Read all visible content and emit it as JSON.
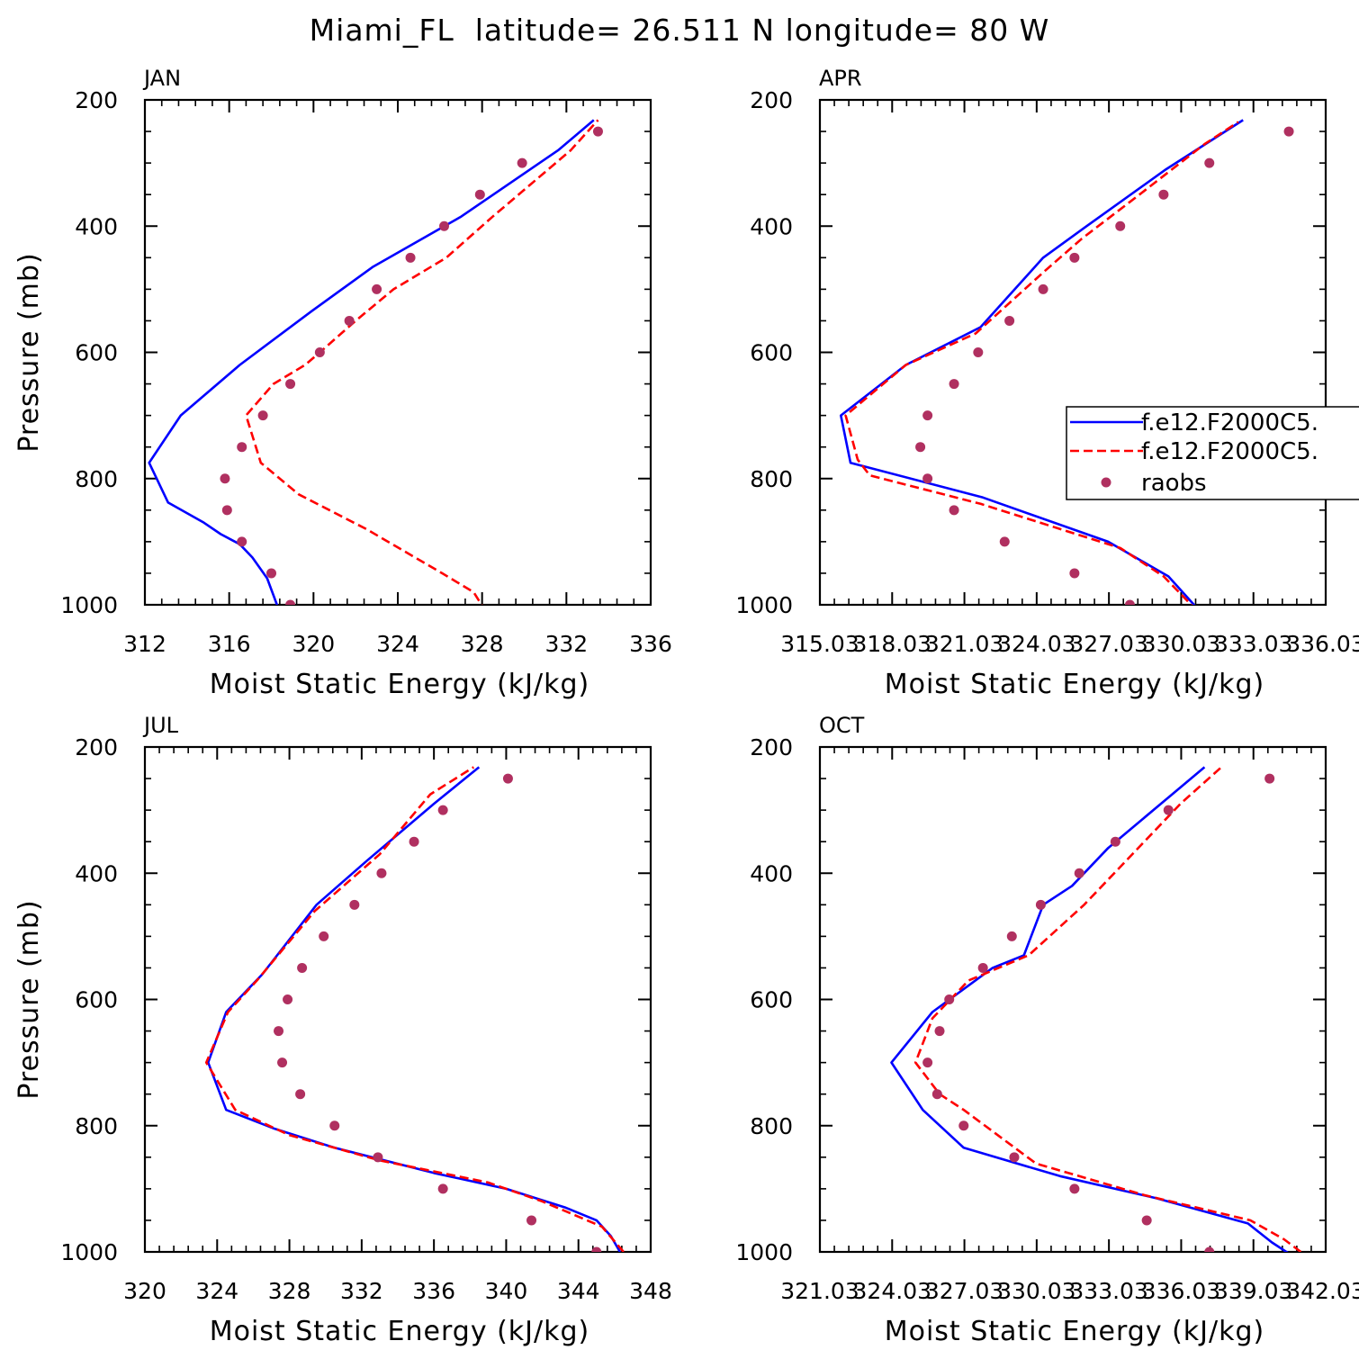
{
  "title": "Miami_FL  latitude= 26.511 N longitude= 80 W",
  "legend": {
    "placement": "middle-right of APR panel",
    "entries": [
      {
        "label": "f.e12.F2000C5.",
        "color": "#0000ff",
        "style": "solid"
      },
      {
        "label": "f.e12.F2000C5.",
        "color": "#ff0000",
        "style": "dashed"
      },
      {
        "label": "raobs",
        "color": "#b03060",
        "style": "dots"
      }
    ]
  },
  "colors": {
    "series1": "#0000ff",
    "series2": "#ff0000",
    "obs": "#b03060"
  },
  "chart_data": [
    {
      "type": "line",
      "panel": "JAN",
      "xlabel": "Moist Static Energy (kJ/kg)",
      "ylabel": "Pressure (mb)",
      "xlim": [
        312,
        336
      ],
      "ylim": [
        1000,
        200
      ],
      "xticks": [
        "312",
        "316",
        "320",
        "324",
        "328",
        "332",
        "336"
      ],
      "yticks": [
        "200",
        "400",
        "600",
        "800",
        "1000"
      ],
      "grid": false,
      "series": [
        {
          "kind": "solid",
          "points": [
            [
              318.4,
              1012
            ],
            [
              317.8,
              958
            ],
            [
              317.1,
              925
            ],
            [
              316.5,
              904
            ],
            [
              315.6,
              888
            ],
            [
              314.8,
              870
            ],
            [
              313.1,
              838
            ],
            [
              312.2,
              775
            ],
            [
              313.7,
              700
            ],
            [
              316.5,
              620
            ],
            [
              319.9,
              535
            ],
            [
              322.8,
              465
            ],
            [
              327.0,
              385
            ],
            [
              331.6,
              280
            ],
            [
              333.3,
              232
            ]
          ]
        },
        {
          "kind": "dashed",
          "points": [
            [
              328.2,
              1012
            ],
            [
              327.6,
              980
            ],
            [
              326.1,
              950
            ],
            [
              322.5,
              880
            ],
            [
              319.3,
              825
            ],
            [
              317.5,
              775
            ],
            [
              316.8,
              700
            ],
            [
              318.1,
              650
            ],
            [
              319.6,
              620
            ],
            [
              320.3,
              600
            ],
            [
              322.0,
              550
            ],
            [
              323.8,
              500
            ],
            [
              326.3,
              450
            ],
            [
              328.5,
              385
            ],
            [
              332.2,
              280
            ],
            [
              333.5,
              232
            ]
          ]
        },
        {
          "kind": "dots",
          "points": [
            [
              333.5,
              250
            ],
            [
              329.9,
              300
            ],
            [
              327.9,
              350
            ],
            [
              326.2,
              400
            ],
            [
              324.6,
              450
            ],
            [
              323.0,
              500
            ],
            [
              321.7,
              550
            ],
            [
              320.3,
              600
            ],
            [
              318.9,
              650
            ],
            [
              317.6,
              700
            ],
            [
              316.6,
              750
            ],
            [
              315.8,
              800
            ],
            [
              315.9,
              850
            ],
            [
              316.6,
              900
            ],
            [
              318.0,
              950
            ],
            [
              318.9,
              1000
            ]
          ]
        }
      ]
    },
    {
      "type": "line",
      "panel": "APR",
      "xlabel": "Moist Static Energy (kJ/kg)",
      "ylabel": "",
      "xlim": [
        315.03,
        336.03
      ],
      "ylim": [
        1000,
        200
      ],
      "xticks": [
        "315.03",
        "318.03",
        "321.03",
        "324.03",
        "327.03",
        "330.03",
        "333.03",
        "336.03"
      ],
      "yticks": [
        "200",
        "400",
        "600",
        "800",
        "1000"
      ],
      "grid": false,
      "series": [
        {
          "kind": "solid",
          "points": [
            [
              330.8,
              1010
            ],
            [
              329.5,
              955
            ],
            [
              327.0,
              900
            ],
            [
              321.8,
              830
            ],
            [
              316.3,
              775
            ],
            [
              315.9,
              700
            ],
            [
              318.6,
              620
            ],
            [
              321.7,
              560
            ],
            [
              324.3,
              450
            ],
            [
              326.1,
              400
            ],
            [
              329.4,
              310
            ],
            [
              332.6,
              232
            ]
          ]
        },
        {
          "kind": "dashed",
          "points": [
            [
              330.7,
              1010
            ],
            [
              329.3,
              955
            ],
            [
              327.5,
              910
            ],
            [
              321.7,
              840
            ],
            [
              317.1,
              795
            ],
            [
              316.6,
              770
            ],
            [
              316.1,
              700
            ],
            [
              318.6,
              620
            ],
            [
              321.5,
              570
            ],
            [
              324.4,
              470
            ],
            [
              325.9,
              420
            ],
            [
              328.3,
              350
            ],
            [
              331.0,
              270
            ],
            [
              332.4,
              235
            ]
          ]
        },
        {
          "kind": "dots",
          "points": [
            [
              334.5,
              250
            ],
            [
              331.2,
              300
            ],
            [
              329.3,
              350
            ],
            [
              327.5,
              400
            ],
            [
              325.6,
              450
            ],
            [
              324.3,
              500
            ],
            [
              322.9,
              550
            ],
            [
              321.6,
              600
            ],
            [
              320.6,
              650
            ],
            [
              319.5,
              700
            ],
            [
              319.2,
              750
            ],
            [
              319.5,
              800
            ],
            [
              320.6,
              850
            ],
            [
              322.7,
              900
            ],
            [
              325.6,
              950
            ],
            [
              327.9,
              1000
            ]
          ]
        }
      ]
    },
    {
      "type": "line",
      "panel": "JUL",
      "xlabel": "Moist Static Energy (kJ/kg)",
      "ylabel": "Pressure (mb)",
      "xlim": [
        320,
        348
      ],
      "ylim": [
        1000,
        200
      ],
      "xticks": [
        "320",
        "324",
        "328",
        "332",
        "336",
        "340",
        "344",
        "348"
      ],
      "yticks": [
        "200",
        "400",
        "600",
        "800",
        "1000"
      ],
      "grid": false,
      "series": [
        {
          "kind": "solid",
          "points": [
            [
              346.3,
              1000
            ],
            [
              345.8,
              975
            ],
            [
              345.0,
              950
            ],
            [
              343.3,
              930
            ],
            [
              340.0,
              900
            ],
            [
              336.0,
              875
            ],
            [
              330.5,
              835
            ],
            [
              327.2,
              805
            ],
            [
              324.5,
              775
            ],
            [
              323.5,
              700
            ],
            [
              324.5,
              620
            ],
            [
              326.5,
              560
            ],
            [
              329.5,
              450
            ],
            [
              332.3,
              380
            ],
            [
              336.0,
              290
            ],
            [
              338.5,
              232
            ]
          ]
        },
        {
          "kind": "dashed",
          "points": [
            [
              346.5,
              1000
            ],
            [
              345.3,
              960
            ],
            [
              342.0,
              920
            ],
            [
              339.0,
              890
            ],
            [
              333.0,
              855
            ],
            [
              328.0,
              815
            ],
            [
              325.0,
              775
            ],
            [
              323.4,
              700
            ],
            [
              324.6,
              620
            ],
            [
              326.2,
              570
            ],
            [
              329.4,
              460
            ],
            [
              333.0,
              370
            ],
            [
              335.8,
              275
            ],
            [
              338.2,
              232
            ]
          ]
        },
        {
          "kind": "dots",
          "points": [
            [
              340.1,
              250
            ],
            [
              336.5,
              300
            ],
            [
              334.9,
              350
            ],
            [
              333.1,
              400
            ],
            [
              331.6,
              450
            ],
            [
              329.9,
              500
            ],
            [
              328.7,
              550
            ],
            [
              327.9,
              600
            ],
            [
              327.4,
              650
            ],
            [
              327.6,
              700
            ],
            [
              328.6,
              750
            ],
            [
              330.5,
              800
            ],
            [
              332.9,
              850
            ],
            [
              336.5,
              900
            ],
            [
              341.4,
              950
            ],
            [
              345.0,
              1000
            ]
          ]
        }
      ]
    },
    {
      "type": "line",
      "panel": "OCT",
      "xlabel": "Moist Static Energy (kJ/kg)",
      "ylabel": "",
      "xlim": [
        321.03,
        342.03
      ],
      "ylim": [
        1000,
        200
      ],
      "xticks": [
        "321.03",
        "324.03",
        "327.03",
        "330.03",
        "333.03",
        "336.03",
        "339.03",
        "342.03"
      ],
      "yticks": [
        "200",
        "400",
        "600",
        "800",
        "1000"
      ],
      "grid": false,
      "series": [
        {
          "kind": "solid",
          "points": [
            [
              340.6,
              1005
            ],
            [
              339.8,
              985
            ],
            [
              338.8,
              955
            ],
            [
              335.0,
              915
            ],
            [
              331.0,
              880
            ],
            [
              327.0,
              835
            ],
            [
              325.3,
              775
            ],
            [
              324.0,
              700
            ],
            [
              325.7,
              620
            ],
            [
              328.2,
              550
            ],
            [
              329.5,
              530
            ],
            [
              330.3,
              450
            ],
            [
              331.5,
              420
            ],
            [
              333.0,
              360
            ],
            [
              335.5,
              280
            ],
            [
              337.0,
              232
            ]
          ]
        },
        {
          "kind": "dashed",
          "points": [
            [
              341.0,
              1000
            ],
            [
              340.3,
              980
            ],
            [
              338.9,
              950
            ],
            [
              334.5,
              910
            ],
            [
              330.0,
              860
            ],
            [
              327.0,
              775
            ],
            [
              326.0,
              750
            ],
            [
              325.0,
              700
            ],
            [
              325.7,
              630
            ],
            [
              327.2,
              570
            ],
            [
              329.7,
              530
            ],
            [
              332.0,
              450
            ],
            [
              336.0,
              290
            ],
            [
              337.7,
              232
            ]
          ]
        },
        {
          "kind": "dots",
          "points": [
            [
              339.7,
              250
            ],
            [
              335.5,
              300
            ],
            [
              333.3,
              350
            ],
            [
              331.8,
              400
            ],
            [
              330.2,
              450
            ],
            [
              329.0,
              500
            ],
            [
              327.8,
              550
            ],
            [
              326.4,
              600
            ],
            [
              326.0,
              650
            ],
            [
              325.5,
              700
            ],
            [
              325.9,
              750
            ],
            [
              327.0,
              800
            ],
            [
              329.1,
              850
            ],
            [
              331.6,
              900
            ],
            [
              334.6,
              950
            ],
            [
              337.2,
              1000
            ]
          ]
        }
      ]
    }
  ]
}
